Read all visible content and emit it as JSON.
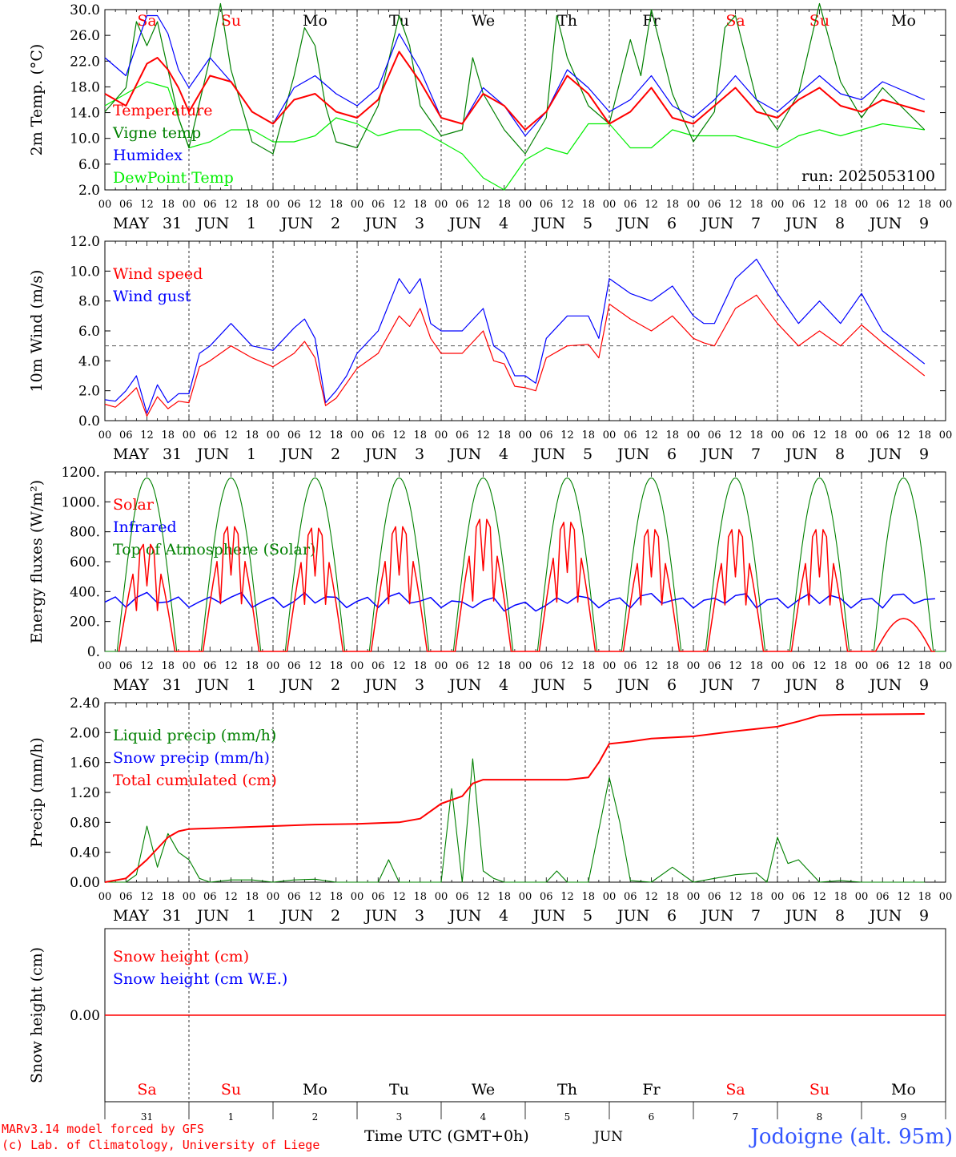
{
  "run_label": "run: 2025053100",
  "x_axis": {
    "hour_ticks": [
      "00",
      "06",
      "12",
      "18"
    ],
    "final_tick": "00",
    "date_labels": [
      {
        "month": "MAY",
        "day": "31"
      },
      {
        "month": "JUN",
        "day": "1"
      },
      {
        "month": "JUN",
        "day": "2"
      },
      {
        "month": "JUN",
        "day": "3"
      },
      {
        "month": "JUN",
        "day": "4"
      },
      {
        "month": "JUN",
        "day": "5"
      },
      {
        "month": "JUN",
        "day": "6"
      },
      {
        "month": "JUN",
        "day": "7"
      },
      {
        "month": "JUN",
        "day": "8"
      },
      {
        "month": "JUN",
        "day": "9"
      }
    ],
    "weekdays": [
      "Sa",
      "Su",
      "Mo",
      "Tu",
      "We",
      "Th",
      "Fr",
      "Sa",
      "Su",
      "Mo"
    ],
    "weekday_colors": [
      "#ff0000",
      "#ff0000",
      "#000000",
      "#000000",
      "#000000",
      "#000000",
      "#000000",
      "#ff0000",
      "#ff0000",
      "#000000"
    ],
    "bottom_day_numbers": [
      "31",
      "1",
      "2",
      "3",
      "4",
      "5",
      "6",
      "7",
      "8",
      "9"
    ],
    "bottom_month": "JUN",
    "time_label": "Time UTC (GMT+0h)"
  },
  "footer": {
    "model_line": "MARv3.14 model forced by GFS",
    "copyright_line": "(c) Lab. of Climatology, University of Liege",
    "station": "Jodoigne (alt. 95m)"
  },
  "colors": {
    "red": "#ff0000",
    "green": "#008000",
    "blue": "#0000ff",
    "lightgreen": "#00ee00"
  },
  "chart_data": [
    {
      "type": "line",
      "ylabel": "2m Temp. (°C)",
      "ylim": [
        2,
        32
      ],
      "yticks": [
        "2.0",
        "6.0",
        "10.0",
        "14.0",
        "18.0",
        "22.0",
        "26.0",
        "30.0"
      ],
      "x_unit": "hours since MAY 31 00 UTC",
      "grid": "vertical dashed at 00 UTC",
      "legend_placement": "left",
      "series": [
        {
          "name": "Temperature",
          "color": "#ff0000",
          "x": [
            0,
            6,
            12,
            15,
            18,
            21,
            24,
            30,
            36,
            42,
            48,
            54,
            60,
            66,
            72,
            78,
            84,
            90,
            96,
            102,
            108,
            114,
            120,
            126,
            132,
            138,
            144,
            150,
            156,
            162,
            168,
            174,
            180,
            186,
            192,
            198,
            204,
            210,
            216,
            222,
            234
          ],
          "values": [
            18,
            16,
            23,
            24,
            22,
            19,
            15,
            21,
            20,
            15,
            13,
            17,
            18,
            15,
            14,
            17,
            25,
            20,
            14,
            13,
            18,
            16,
            12,
            15,
            21,
            18,
            13,
            15,
            19,
            14,
            13,
            16,
            19,
            15,
            14,
            17,
            19,
            16,
            15,
            17,
            15
          ]
        },
        {
          "name": "Vigne temp",
          "color": "#008000",
          "x": [
            0,
            6,
            9,
            12,
            15,
            18,
            21,
            24,
            30,
            33,
            36,
            42,
            48,
            54,
            57,
            60,
            63,
            66,
            72,
            78,
            84,
            87,
            90,
            96,
            102,
            105,
            108,
            114,
            120,
            126,
            129,
            132,
            138,
            144,
            150,
            153,
            156,
            162,
            168,
            174,
            177,
            180,
            186,
            192,
            198,
            204,
            210,
            216,
            222,
            234
          ],
          "values": [
            15,
            19,
            30,
            26,
            30,
            22,
            14,
            9,
            24,
            33,
            22,
            10,
            8,
            21,
            29,
            26,
            16,
            10,
            9,
            16,
            31,
            26,
            16,
            11,
            12,
            24,
            18,
            12,
            8,
            14,
            31,
            24,
            16,
            13,
            27,
            21,
            32,
            18,
            10,
            15,
            29,
            31,
            17,
            12,
            18,
            33,
            20,
            14,
            19,
            12
          ]
        },
        {
          "name": "Humidex",
          "color": "#0000ff",
          "x": [
            0,
            6,
            9,
            12,
            15,
            18,
            21,
            24,
            30,
            36,
            42,
            48,
            54,
            60,
            66,
            72,
            78,
            84,
            90,
            96,
            102,
            108,
            114,
            120,
            126,
            132,
            138,
            144,
            150,
            156,
            162,
            168,
            174,
            180,
            186,
            192,
            198,
            204,
            210,
            216,
            222,
            234
          ],
          "values": [
            24,
            21,
            26,
            31,
            31,
            28,
            22,
            19,
            24,
            20,
            15,
            13,
            19,
            21,
            18,
            16,
            19,
            28,
            22,
            14,
            13,
            19,
            16,
            11,
            15,
            22,
            19,
            15,
            17,
            21,
            16,
            14,
            17,
            21,
            17,
            15,
            18,
            21,
            18,
            17,
            20,
            17
          ]
        },
        {
          "name": "DewPoint Temp",
          "color": "#00ee00",
          "x": [
            0,
            6,
            12,
            18,
            24,
            30,
            36,
            42,
            48,
            54,
            60,
            66,
            72,
            78,
            84,
            90,
            96,
            102,
            108,
            114,
            120,
            126,
            132,
            138,
            144,
            150,
            156,
            162,
            168,
            174,
            180,
            186,
            192,
            198,
            204,
            210,
            216,
            222,
            234
          ],
          "values": [
            16,
            18,
            20,
            19,
            9,
            10,
            12,
            12,
            10,
            10,
            11,
            14,
            13,
            11,
            12,
            12,
            10,
            8,
            4,
            2,
            7,
            9,
            8,
            13,
            13,
            9,
            9,
            12,
            11,
            11,
            11,
            10,
            9,
            11,
            12,
            11,
            12,
            13,
            12
          ]
        }
      ]
    },
    {
      "type": "line",
      "ylabel": "10m Wind (m/s)",
      "ylim": [
        0,
        12
      ],
      "yticks": [
        "0.0",
        "2.0",
        "4.0",
        "6.0",
        "8.0",
        "10.0",
        "12.0"
      ],
      "reference_line": 5,
      "legend_placement": "left",
      "series": [
        {
          "name": "Wind speed",
          "color": "#ff0000",
          "x": [
            0,
            3,
            6,
            9,
            12,
            15,
            18,
            21,
            24,
            27,
            30,
            36,
            42,
            48,
            54,
            57,
            60,
            63,
            66,
            69,
            72,
            78,
            84,
            87,
            90,
            93,
            96,
            102,
            108,
            111,
            114,
            117,
            120,
            123,
            126,
            132,
            138,
            141,
            144,
            150,
            156,
            162,
            168,
            171,
            174,
            180,
            186,
            192,
            198,
            204,
            210,
            216,
            222,
            234
          ],
          "values": [
            1.1,
            0.9,
            1.5,
            2.2,
            0.3,
            1.6,
            0.8,
            1.3,
            1.2,
            3.6,
            4.0,
            5.0,
            4.2,
            3.6,
            4.5,
            5.3,
            4.2,
            1.0,
            1.5,
            2.5,
            3.5,
            4.5,
            7.0,
            6.3,
            7.5,
            5.5,
            4.5,
            4.5,
            6.0,
            4.0,
            3.8,
            2.3,
            2.2,
            2.0,
            4.2,
            5.0,
            5.1,
            4.2,
            7.8,
            6.8,
            6.0,
            7.0,
            5.5,
            5.2,
            5.0,
            7.5,
            8.4,
            6.5,
            5.0,
            6.0,
            5.0,
            6.4,
            5.2,
            3.0
          ]
        },
        {
          "name": "Wind gust",
          "color": "#0000ff",
          "x": [
            0,
            3,
            6,
            9,
            12,
            15,
            18,
            21,
            24,
            27,
            30,
            36,
            42,
            48,
            54,
            57,
            60,
            63,
            66,
            69,
            72,
            78,
            84,
            87,
            90,
            93,
            96,
            102,
            108,
            111,
            114,
            117,
            120,
            123,
            126,
            132,
            138,
            141,
            144,
            150,
            156,
            162,
            168,
            171,
            174,
            180,
            186,
            192,
            198,
            204,
            210,
            216,
            222,
            234
          ],
          "values": [
            1.4,
            1.3,
            2.0,
            3.0,
            0.5,
            2.4,
            1.2,
            1.8,
            1.8,
            4.5,
            5.0,
            6.5,
            5.0,
            4.7,
            6.2,
            6.8,
            5.5,
            1.2,
            2.0,
            3.0,
            4.5,
            6.0,
            9.5,
            8.5,
            9.5,
            6.5,
            6.0,
            6.0,
            7.5,
            5.0,
            4.5,
            3.0,
            3.0,
            2.5,
            5.5,
            7.0,
            7.0,
            5.5,
            9.5,
            8.5,
            8.0,
            9.0,
            7.0,
            6.5,
            6.5,
            9.5,
            10.8,
            8.5,
            6.5,
            8.0,
            6.5,
            8.5,
            6.0,
            3.8
          ]
        }
      ]
    },
    {
      "type": "line",
      "ylabel": "Energy fluxes (W/m²)",
      "ylim": [
        0,
        1200
      ],
      "yticks": [
        "0.",
        "200.",
        "400.",
        "600.",
        "800.",
        "1000.",
        "1200."
      ],
      "legend_placement": "left",
      "solar_daily_peaks": [
        730,
        850,
        840,
        850,
        900,
        880,
        830,
        830,
        830,
        220
      ],
      "toa_peak": 1160,
      "series": [
        {
          "name": "Solar",
          "color": "#ff0000"
        },
        {
          "name": "Infrared",
          "color": "#0000ff",
          "value_range": [
            270,
            400
          ]
        },
        {
          "name": "Top of Atmosphere (Solar)",
          "color": "#008000"
        }
      ]
    },
    {
      "type": "line",
      "ylabel": "Precip (mm/h)",
      "ylim": [
        0,
        2.4
      ],
      "yticks": [
        "0.00",
        "0.40",
        "0.80",
        "1.20",
        "1.60",
        "2.00",
        "2.40"
      ],
      "legend_placement": "left",
      "series": [
        {
          "name": "Liquid precip (mm/h)",
          "color": "#008000",
          "x": [
            0,
            6,
            9,
            12,
            15,
            18,
            21,
            24,
            27,
            30,
            36,
            42,
            48,
            54,
            60,
            66,
            72,
            78,
            81,
            84,
            90,
            96,
            99,
            102,
            105,
            108,
            111,
            114,
            120,
            126,
            129,
            132,
            138,
            144,
            147,
            150,
            156,
            162,
            168,
            174,
            180,
            186,
            189,
            192,
            195,
            198,
            204,
            210,
            216,
            222,
            234
          ],
          "values": [
            0,
            0,
            0.1,
            0.75,
            0.2,
            0.65,
            0.4,
            0.3,
            0.05,
            0,
            0.03,
            0.03,
            0,
            0.03,
            0.04,
            0,
            0,
            0,
            0.3,
            0,
            0,
            0,
            1.25,
            0,
            1.65,
            0.15,
            0.05,
            0,
            0,
            0,
            0.15,
            0,
            0,
            1.4,
            0.8,
            0.02,
            0,
            0.2,
            0,
            0.05,
            0.1,
            0.12,
            0,
            0.6,
            0.25,
            0.3,
            0,
            0.02,
            0,
            0,
            0
          ]
        },
        {
          "name": "Snow precip (mm/h)",
          "color": "#0000ff"
        },
        {
          "name": "Total cumulated (cm)",
          "color": "#ff0000",
          "x": [
            0,
            6,
            12,
            18,
            21,
            24,
            36,
            48,
            60,
            72,
            84,
            90,
            96,
            99,
            102,
            105,
            108,
            120,
            132,
            138,
            141,
            144,
            150,
            156,
            168,
            180,
            192,
            198,
            204,
            210,
            234
          ],
          "values": [
            0,
            0.05,
            0.3,
            0.6,
            0.68,
            0.71,
            0.73,
            0.75,
            0.77,
            0.78,
            0.8,
            0.85,
            1.05,
            1.1,
            1.15,
            1.32,
            1.37,
            1.37,
            1.37,
            1.4,
            1.6,
            1.85,
            1.88,
            1.92,
            1.95,
            2.02,
            2.08,
            2.15,
            2.23,
            2.24,
            2.25
          ]
        }
      ]
    },
    {
      "type": "line",
      "ylabel": "Snow height (cm)",
      "ytick": "0.00",
      "legend_placement": "left",
      "series": [
        {
          "name": "Snow height (cm)",
          "color": "#ff0000",
          "values": [
            0,
            0
          ]
        },
        {
          "name": "Snow height (cm W.E.)",
          "color": "#0000ff"
        }
      ]
    }
  ]
}
